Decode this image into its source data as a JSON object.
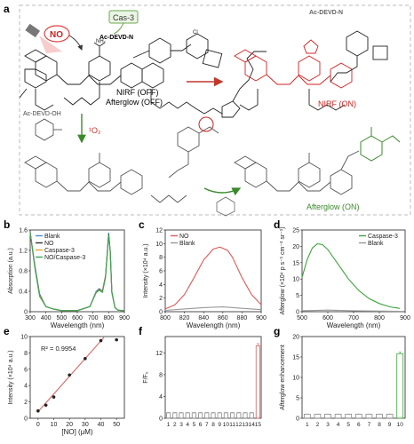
{
  "panel_a": {
    "label": "a",
    "enzyme_tag": "Cas-3",
    "substrate_label": "Ac-DEVD-N",
    "substrate_label_right": "Ac-DEVD-N",
    "reagent_no": "NO",
    "state_off": "NIRF (OFF)",
    "state_off2": "Afterglow (OFF)",
    "state_on": "NIRF (ON)",
    "afterglow_on": "Afterglow (ON)",
    "byproduct": "Ac-DEVD-OH",
    "singlet_oxygen": "¹O₂"
  },
  "chart_data": [
    {
      "panel": "b",
      "type": "line",
      "xlabel": "Wavelength (nm)",
      "ylabel": "Absorption (a.u.)",
      "xlim": [
        300,
        900
      ],
      "ylim": [
        0,
        1.6
      ],
      "xticks": [
        300,
        400,
        500,
        600,
        700,
        800,
        900
      ],
      "yticks": [
        0.0,
        0.4,
        0.8,
        1.2,
        1.6
      ],
      "legend": "top-left",
      "series": [
        {
          "name": "Blank",
          "color": "#4a90d9",
          "x": [
            300,
            330,
            360,
            400,
            450,
            500,
            600,
            680,
            720,
            740,
            760,
            780,
            800,
            810,
            820,
            840,
            860,
            900
          ],
          "y": [
            1.55,
            0.9,
            0.35,
            0.1,
            0.05,
            0.02,
            0.02,
            0.1,
            0.4,
            0.45,
            0.4,
            0.7,
            1.55,
            1.2,
            0.4,
            0.08,
            0.03,
            0.02
          ]
        },
        {
          "name": "NO",
          "color": "#333333",
          "x": [
            300,
            330,
            360,
            400,
            450,
            500,
            600,
            680,
            720,
            740,
            760,
            780,
            800,
            810,
            820,
            840,
            860,
            900
          ],
          "y": [
            1.55,
            0.88,
            0.33,
            0.1,
            0.05,
            0.02,
            0.02,
            0.1,
            0.38,
            0.44,
            0.4,
            0.7,
            1.52,
            1.18,
            0.38,
            0.08,
            0.03,
            0.02
          ]
        },
        {
          "name": "Caspase-3",
          "color": "#e8a33d",
          "x": [
            300,
            330,
            360,
            400,
            450,
            500,
            600,
            680,
            720,
            740,
            760,
            780,
            800,
            810,
            820,
            840,
            860,
            900
          ],
          "y": [
            1.55,
            0.86,
            0.32,
            0.1,
            0.05,
            0.02,
            0.02,
            0.1,
            0.38,
            0.43,
            0.39,
            0.68,
            1.5,
            1.17,
            0.38,
            0.08,
            0.03,
            0.02
          ]
        },
        {
          "name": "NO/Caspase-3",
          "color": "#3aa655",
          "x": [
            300,
            330,
            360,
            400,
            450,
            500,
            600,
            680,
            720,
            740,
            760,
            780,
            800,
            810,
            820,
            840,
            860,
            900
          ],
          "y": [
            1.55,
            0.85,
            0.3,
            0.1,
            0.05,
            0.02,
            0.02,
            0.1,
            0.37,
            0.42,
            0.38,
            0.67,
            1.5,
            1.16,
            0.37,
            0.08,
            0.03,
            0.02
          ]
        }
      ]
    },
    {
      "panel": "c",
      "type": "line",
      "xlabel": "Wavelength (nm)",
      "ylabel": "Intensity (×10⁴ a.u.)",
      "xlim": [
        800,
        900
      ],
      "ylim": [
        0,
        12
      ],
      "xticks": [
        800,
        820,
        840,
        860,
        880,
        900
      ],
      "yticks": [
        0,
        2,
        4,
        6,
        8,
        10,
        12
      ],
      "legend": "top-left",
      "series": [
        {
          "name": "NO",
          "color": "#e05a5a",
          "x": [
            800,
            810,
            820,
            830,
            840,
            850,
            857,
            865,
            870,
            880,
            890,
            900
          ],
          "y": [
            0.4,
            1.0,
            2.5,
            5.0,
            7.6,
            9.2,
            9.5,
            9.0,
            8.0,
            5.0,
            2.5,
            1.0
          ]
        },
        {
          "name": "Blank",
          "color": "#999999",
          "x": [
            800,
            820,
            840,
            860,
            880,
            900
          ],
          "y": [
            0.2,
            0.4,
            0.6,
            0.7,
            0.5,
            0.3
          ]
        }
      ]
    },
    {
      "panel": "d",
      "type": "line",
      "xlabel": "Wavelength (nm)",
      "ylabel": "Afterglow (×10⁴ p s⁻¹ cm⁻² sr⁻¹)",
      "xlim": [
        500,
        900
      ],
      "ylim": [
        0,
        25
      ],
      "xticks": [
        500,
        600,
        700,
        800,
        900
      ],
      "yticks": [
        0,
        5,
        10,
        15,
        20,
        25
      ],
      "legend": "top-right",
      "series": [
        {
          "name": "Caspase-3",
          "color": "#3aa63a",
          "x": [
            500,
            520,
            540,
            560,
            580,
            600,
            640,
            680,
            720,
            760,
            800,
            840,
            880
          ],
          "y": [
            10.5,
            16,
            19.5,
            20.8,
            20.5,
            19.0,
            14.5,
            10.0,
            6.5,
            4.0,
            2.5,
            1.5,
            1.0
          ]
        },
        {
          "name": "Blank",
          "color": "#999999",
          "x": [
            500,
            600,
            700,
            800,
            880
          ],
          "y": [
            0.3,
            0.5,
            0.3,
            0.2,
            0.1
          ]
        }
      ]
    },
    {
      "panel": "e",
      "type": "scatter",
      "xlabel": "[NO] (μM)",
      "ylabel": "Intensity (×10⁴ a.u.)",
      "xlim": [
        -5,
        55
      ],
      "ylim": [
        0,
        10
      ],
      "xticks": [
        0,
        10,
        20,
        30,
        40,
        50
      ],
      "yticks": [
        0,
        2,
        4,
        6,
        8,
        10
      ],
      "annotation": "R² = 0.9954",
      "points": {
        "x": [
          0,
          5,
          10,
          20,
          30,
          40,
          50
        ],
        "y": [
          0.9,
          1.6,
          2.6,
          5.3,
          7.3,
          9.5,
          9.6
        ]
      },
      "fit": {
        "x": [
          0,
          42
        ],
        "y": [
          0.8,
          9.9
        ],
        "color": "#e05a5a"
      }
    },
    {
      "panel": "f",
      "type": "bar",
      "xlabel": "",
      "ylabel": "F/F₀",
      "ylim": [
        0,
        15
      ],
      "yticks": [
        0,
        4,
        8,
        12
      ],
      "categories": [
        "1",
        "2",
        "3",
        "4",
        "5",
        "6",
        "7",
        "8",
        "9",
        "10",
        "11",
        "12",
        "13",
        "14",
        "15"
      ],
      "values": [
        1.0,
        1.0,
        1.0,
        1.0,
        1.0,
        1.0,
        1.0,
        1.0,
        1.0,
        1.0,
        1.0,
        1.0,
        1.0,
        1.0,
        13.3
      ],
      "errors": [
        0.05,
        0.05,
        0.05,
        0.05,
        0.05,
        0.05,
        0.05,
        0.05,
        0.05,
        0.05,
        0.05,
        0.05,
        0.05,
        0.05,
        0.4
      ],
      "color": "#888888",
      "highlight": "#e05a5a"
    },
    {
      "panel": "g",
      "type": "bar",
      "xlabel": "",
      "ylabel": "Afterglow enhancement",
      "ylim": [
        0,
        20
      ],
      "yticks": [
        0,
        5,
        10,
        15,
        20
      ],
      "categories": [
        "1",
        "2",
        "3",
        "4",
        "5",
        "6",
        "7",
        "8",
        "9",
        "10"
      ],
      "values": [
        1.0,
        1.0,
        1.0,
        1.0,
        1.0,
        1.0,
        1.0,
        1.0,
        1.0,
        15.8
      ],
      "errors": [
        0.05,
        0.05,
        0.05,
        0.05,
        0.05,
        0.05,
        0.05,
        0.05,
        0.05,
        0.4
      ],
      "color": "#888888",
      "highlight": "#3aa63a"
    }
  ]
}
